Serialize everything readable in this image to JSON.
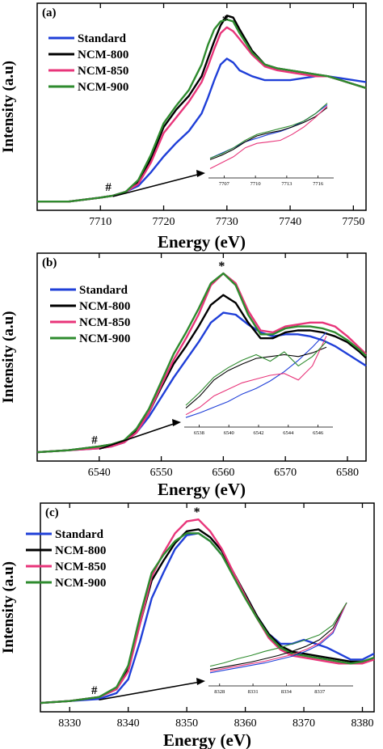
{
  "chart_data": [
    {
      "type": "line",
      "panel_label": "(a)",
      "xlabel": "Energy (eV)",
      "ylabel": "Intensity (a.u)",
      "xlim": [
        7700,
        7752
      ],
      "ylim": [
        0,
        1.0
      ],
      "xticks": [
        7710,
        7720,
        7730,
        7740,
        7750
      ],
      "peak_marker": "*",
      "preedge_marker": "#",
      "legend_position": "top-left",
      "colors": {
        "Standard": "#1f3fd8",
        "NCM-800": "#000000",
        "NCM-850": "#e8357a",
        "NCM-900": "#2e8b2e"
      },
      "series": [
        {
          "name": "Standard",
          "x": [
            7700,
            7705,
            7710,
            7712,
            7714,
            7716,
            7718,
            7720,
            7722,
            7724,
            7726,
            7727,
            7728,
            7729,
            7730,
            7731,
            7732,
            7734,
            7736,
            7738,
            7740,
            7742,
            7744,
            7746,
            7748,
            7750,
            7752
          ],
          "y": [
            0.02,
            0.02,
            0.04,
            0.05,
            0.07,
            0.1,
            0.17,
            0.25,
            0.32,
            0.38,
            0.47,
            0.55,
            0.64,
            0.72,
            0.75,
            0.73,
            0.69,
            0.66,
            0.64,
            0.64,
            0.64,
            0.65,
            0.66,
            0.66,
            0.65,
            0.64,
            0.63
          ]
        },
        {
          "name": "NCM-800",
          "x": [
            7700,
            7705,
            7710,
            7712,
            7714,
            7716,
            7718,
            7720,
            7722,
            7724,
            7726,
            7727,
            7728,
            7729,
            7730,
            7731,
            7732,
            7734,
            7736,
            7738,
            7740,
            7742,
            7744,
            7746,
            7748,
            7750,
            7752
          ],
          "y": [
            0.02,
            0.02,
            0.04,
            0.05,
            0.07,
            0.12,
            0.24,
            0.4,
            0.49,
            0.56,
            0.66,
            0.75,
            0.84,
            0.92,
            0.97,
            0.96,
            0.9,
            0.79,
            0.72,
            0.7,
            0.69,
            0.68,
            0.67,
            0.66,
            0.64,
            0.62,
            0.6
          ]
        },
        {
          "name": "NCM-850",
          "x": [
            7700,
            7705,
            7710,
            7712,
            7714,
            7716,
            7718,
            7720,
            7722,
            7724,
            7726,
            7727,
            7728,
            7729,
            7730,
            7731,
            7732,
            7734,
            7736,
            7738,
            7740,
            7742,
            7744,
            7746,
            7748,
            7750,
            7752
          ],
          "y": [
            0.02,
            0.02,
            0.04,
            0.05,
            0.07,
            0.11,
            0.22,
            0.37,
            0.45,
            0.53,
            0.63,
            0.71,
            0.8,
            0.88,
            0.91,
            0.89,
            0.85,
            0.77,
            0.71,
            0.69,
            0.68,
            0.67,
            0.66,
            0.66,
            0.64,
            0.62,
            0.6
          ]
        },
        {
          "name": "NCM-900",
          "x": [
            7700,
            7705,
            7710,
            7712,
            7714,
            7716,
            7718,
            7720,
            7722,
            7724,
            7726,
            7727,
            7728,
            7729,
            7730,
            7731,
            7732,
            7734,
            7736,
            7738,
            7740,
            7742,
            7744,
            7746,
            7748,
            7750,
            7752
          ],
          "y": [
            0.02,
            0.02,
            0.04,
            0.05,
            0.07,
            0.13,
            0.26,
            0.42,
            0.51,
            0.59,
            0.72,
            0.82,
            0.9,
            0.94,
            0.95,
            0.94,
            0.88,
            0.78,
            0.72,
            0.7,
            0.69,
            0.68,
            0.67,
            0.66,
            0.64,
            0.62,
            0.6
          ]
        }
      ],
      "inset": {
        "xticks": [
          7707,
          7710,
          7713,
          7716
        ],
        "xlim": [
          7705.5,
          7717.5
        ],
        "series": [
          {
            "name": "Standard",
            "y": [
              0.2,
              0.27,
              0.34,
              0.42,
              0.47,
              0.52,
              0.56,
              0.62,
              0.7,
              0.8,
              0.92
            ]
          },
          {
            "name": "NCM-800",
            "y": [
              0.18,
              0.24,
              0.32,
              0.42,
              0.5,
              0.54,
              0.57,
              0.62,
              0.68,
              0.76,
              0.88
            ]
          },
          {
            "name": "NCM-850",
            "y": [
              0.06,
              0.14,
              0.22,
              0.34,
              0.4,
              0.42,
              0.44,
              0.52,
              0.62,
              0.75,
              0.9
            ]
          },
          {
            "name": "NCM-900",
            "y": [
              0.2,
              0.26,
              0.34,
              0.44,
              0.52,
              0.56,
              0.6,
              0.64,
              0.7,
              0.8,
              0.94
            ]
          }
        ]
      }
    },
    {
      "type": "line",
      "panel_label": "(b)",
      "xlabel": "Energy (eV)",
      "ylabel": "Intensity (a.u)",
      "xlim": [
        6530,
        6583
      ],
      "ylim": [
        0,
        1.0
      ],
      "xticks": [
        6540,
        6550,
        6560,
        6570,
        6580
      ],
      "peak_marker": "*",
      "preedge_marker": "#",
      "legend_position": "top-left",
      "colors": {
        "Standard": "#1f3fd8",
        "NCM-800": "#000000",
        "NCM-850": "#e8357a",
        "NCM-900": "#2e8b2e"
      },
      "series": [
        {
          "name": "Standard",
          "x": [
            6530,
            6535,
            6540,
            6542,
            6544,
            6546,
            6548,
            6550,
            6552,
            6554,
            6556,
            6558,
            6560,
            6562,
            6564,
            6566,
            6568,
            6570,
            6572,
            6574,
            6576,
            6578,
            6580,
            6582,
            6583
          ],
          "y": [
            0.02,
            0.03,
            0.04,
            0.05,
            0.07,
            0.12,
            0.2,
            0.3,
            0.4,
            0.49,
            0.58,
            0.68,
            0.73,
            0.72,
            0.67,
            0.63,
            0.61,
            0.62,
            0.62,
            0.61,
            0.59,
            0.56,
            0.52,
            0.48,
            0.46
          ]
        },
        {
          "name": "NCM-800",
          "x": [
            6530,
            6535,
            6540,
            6542,
            6544,
            6546,
            6548,
            6550,
            6552,
            6554,
            6556,
            6558,
            6560,
            6562,
            6564,
            6566,
            6568,
            6570,
            6572,
            6574,
            6576,
            6578,
            6580,
            6582,
            6583
          ],
          "y": [
            0.02,
            0.03,
            0.05,
            0.06,
            0.08,
            0.13,
            0.22,
            0.35,
            0.47,
            0.56,
            0.66,
            0.77,
            0.82,
            0.78,
            0.68,
            0.6,
            0.6,
            0.63,
            0.64,
            0.64,
            0.63,
            0.61,
            0.58,
            0.53,
            0.5
          ]
        },
        {
          "name": "NCM-850",
          "x": [
            6530,
            6535,
            6540,
            6542,
            6544,
            6546,
            6548,
            6550,
            6552,
            6554,
            6556,
            6558,
            6560,
            6562,
            6564,
            6566,
            6568,
            6570,
            6572,
            6574,
            6576,
            6578,
            6580,
            6582,
            6583
          ],
          "y": [
            0.02,
            0.03,
            0.04,
            0.05,
            0.07,
            0.12,
            0.22,
            0.36,
            0.49,
            0.6,
            0.72,
            0.87,
            0.93,
            0.88,
            0.74,
            0.64,
            0.63,
            0.66,
            0.67,
            0.68,
            0.68,
            0.66,
            0.61,
            0.55,
            0.52
          ]
        },
        {
          "name": "NCM-900",
          "x": [
            6530,
            6535,
            6540,
            6542,
            6544,
            6546,
            6548,
            6550,
            6552,
            6554,
            6556,
            6558,
            6560,
            6562,
            6564,
            6566,
            6568,
            6570,
            6572,
            6574,
            6576,
            6578,
            6580,
            6582,
            6583
          ],
          "y": [
            0.02,
            0.03,
            0.05,
            0.06,
            0.08,
            0.14,
            0.24,
            0.38,
            0.52,
            0.63,
            0.75,
            0.88,
            0.93,
            0.87,
            0.72,
            0.62,
            0.62,
            0.65,
            0.66,
            0.66,
            0.65,
            0.63,
            0.59,
            0.54,
            0.51
          ]
        }
      ],
      "inset": {
        "xticks": [
          6538,
          6540,
          6542,
          6544,
          6546
        ],
        "xlim": [
          6537,
          6547
        ],
        "series": [
          {
            "name": "Standard",
            "y": [
              0.05,
              0.1,
              0.16,
              0.22,
              0.3,
              0.36,
              0.44,
              0.54,
              0.66,
              0.8,
              0.96
            ]
          },
          {
            "name": "NCM-800",
            "y": [
              0.15,
              0.28,
              0.45,
              0.55,
              0.62,
              0.68,
              0.7,
              0.72,
              0.7,
              0.74,
              0.8
            ]
          },
          {
            "name": "NCM-850",
            "y": [
              0.08,
              0.16,
              0.28,
              0.35,
              0.42,
              0.46,
              0.5,
              0.52,
              0.45,
              0.6,
              0.92
            ]
          },
          {
            "name": "NCM-900",
            "y": [
              0.18,
              0.32,
              0.48,
              0.58,
              0.66,
              0.72,
              0.65,
              0.75,
              0.6,
              0.7,
              0.86
            ]
          }
        ]
      }
    },
    {
      "type": "line",
      "panel_label": "(c)",
      "xlabel": "Energy (eV)",
      "ylabel": "Intensity (a.u)",
      "xlim": [
        8325,
        8382
      ],
      "ylim": [
        0,
        1.0
      ],
      "xticks": [
        8330,
        8340,
        8350,
        8360,
        8370,
        8380
      ],
      "peak_marker": "*",
      "preedge_marker": "#",
      "legend_position": "top-left",
      "colors": {
        "Standard": "#1f3fd8",
        "NCM-800": "#000000",
        "NCM-850": "#e8357a",
        "NCM-900": "#2e8b2e"
      },
      "series": [
        {
          "name": "Standard",
          "x": [
            8325,
            8330,
            8335,
            8338,
            8340,
            8342,
            8344,
            8346,
            8348,
            8350,
            8352,
            8354,
            8356,
            8358,
            8360,
            8362,
            8364,
            8366,
            8368,
            8370,
            8372,
            8374,
            8376,
            8378,
            8380,
            8382
          ],
          "y": [
            0.02,
            0.03,
            0.04,
            0.07,
            0.14,
            0.33,
            0.55,
            0.68,
            0.8,
            0.87,
            0.88,
            0.84,
            0.77,
            0.67,
            0.57,
            0.46,
            0.37,
            0.32,
            0.32,
            0.34,
            0.32,
            0.3,
            0.27,
            0.24,
            0.24,
            0.27
          ]
        },
        {
          "name": "NCM-800",
          "x": [
            8325,
            8330,
            8335,
            8338,
            8340,
            8342,
            8344,
            8346,
            8348,
            8350,
            8352,
            8354,
            8356,
            8358,
            8360,
            8362,
            8364,
            8366,
            8368,
            8370,
            8372,
            8374,
            8376,
            8378,
            8380,
            8382
          ],
          "y": [
            0.02,
            0.03,
            0.05,
            0.09,
            0.19,
            0.42,
            0.64,
            0.74,
            0.83,
            0.89,
            0.9,
            0.86,
            0.79,
            0.68,
            0.57,
            0.46,
            0.37,
            0.31,
            0.28,
            0.27,
            0.26,
            0.25,
            0.24,
            0.23,
            0.23,
            0.24
          ]
        },
        {
          "name": "NCM-850",
          "x": [
            8325,
            8330,
            8335,
            8338,
            8340,
            8342,
            8344,
            8346,
            8348,
            8350,
            8352,
            8354,
            8356,
            8358,
            8360,
            8362,
            8364,
            8366,
            8368,
            8370,
            8372,
            8374,
            8376,
            8378,
            8380,
            8382
          ],
          "y": [
            0.02,
            0.03,
            0.05,
            0.09,
            0.18,
            0.42,
            0.66,
            0.78,
            0.88,
            0.94,
            0.95,
            0.89,
            0.8,
            0.68,
            0.56,
            0.45,
            0.35,
            0.29,
            0.26,
            0.25,
            0.24,
            0.23,
            0.22,
            0.22,
            0.22,
            0.24
          ]
        },
        {
          "name": "NCM-900",
          "x": [
            8325,
            8330,
            8335,
            8338,
            8340,
            8342,
            8344,
            8346,
            8348,
            8350,
            8352,
            8354,
            8356,
            8358,
            8360,
            8362,
            8364,
            8366,
            8368,
            8370,
            8372,
            8374,
            8376,
            8378,
            8380,
            8382
          ],
          "y": [
            0.02,
            0.03,
            0.05,
            0.1,
            0.21,
            0.46,
            0.68,
            0.77,
            0.84,
            0.88,
            0.88,
            0.84,
            0.77,
            0.66,
            0.55,
            0.45,
            0.36,
            0.3,
            0.27,
            0.26,
            0.25,
            0.24,
            0.23,
            0.22,
            0.23,
            0.25
          ]
        }
      ],
      "inset": {
        "xticks": [
          8328,
          8331,
          8334,
          8337
        ],
        "xlim": [
          8327,
          8340
        ],
        "series": [
          {
            "name": "Standard",
            "y": [
              0.1,
              0.13,
              0.16,
              0.19,
              0.22,
              0.26,
              0.3,
              0.36,
              0.44,
              0.58,
              0.95
            ]
          },
          {
            "name": "NCM-800",
            "y": [
              0.14,
              0.17,
              0.2,
              0.23,
              0.27,
              0.31,
              0.36,
              0.42,
              0.5,
              0.64,
              0.95
            ]
          },
          {
            "name": "NCM-850",
            "y": [
              0.12,
              0.15,
              0.18,
              0.21,
              0.24,
              0.28,
              0.32,
              0.38,
              0.46,
              0.6,
              0.95
            ]
          },
          {
            "name": "NCM-900",
            "y": [
              0.18,
              0.22,
              0.27,
              0.31,
              0.36,
              0.4,
              0.45,
              0.5,
              0.56,
              0.68,
              0.95
            ]
          }
        ]
      }
    }
  ]
}
